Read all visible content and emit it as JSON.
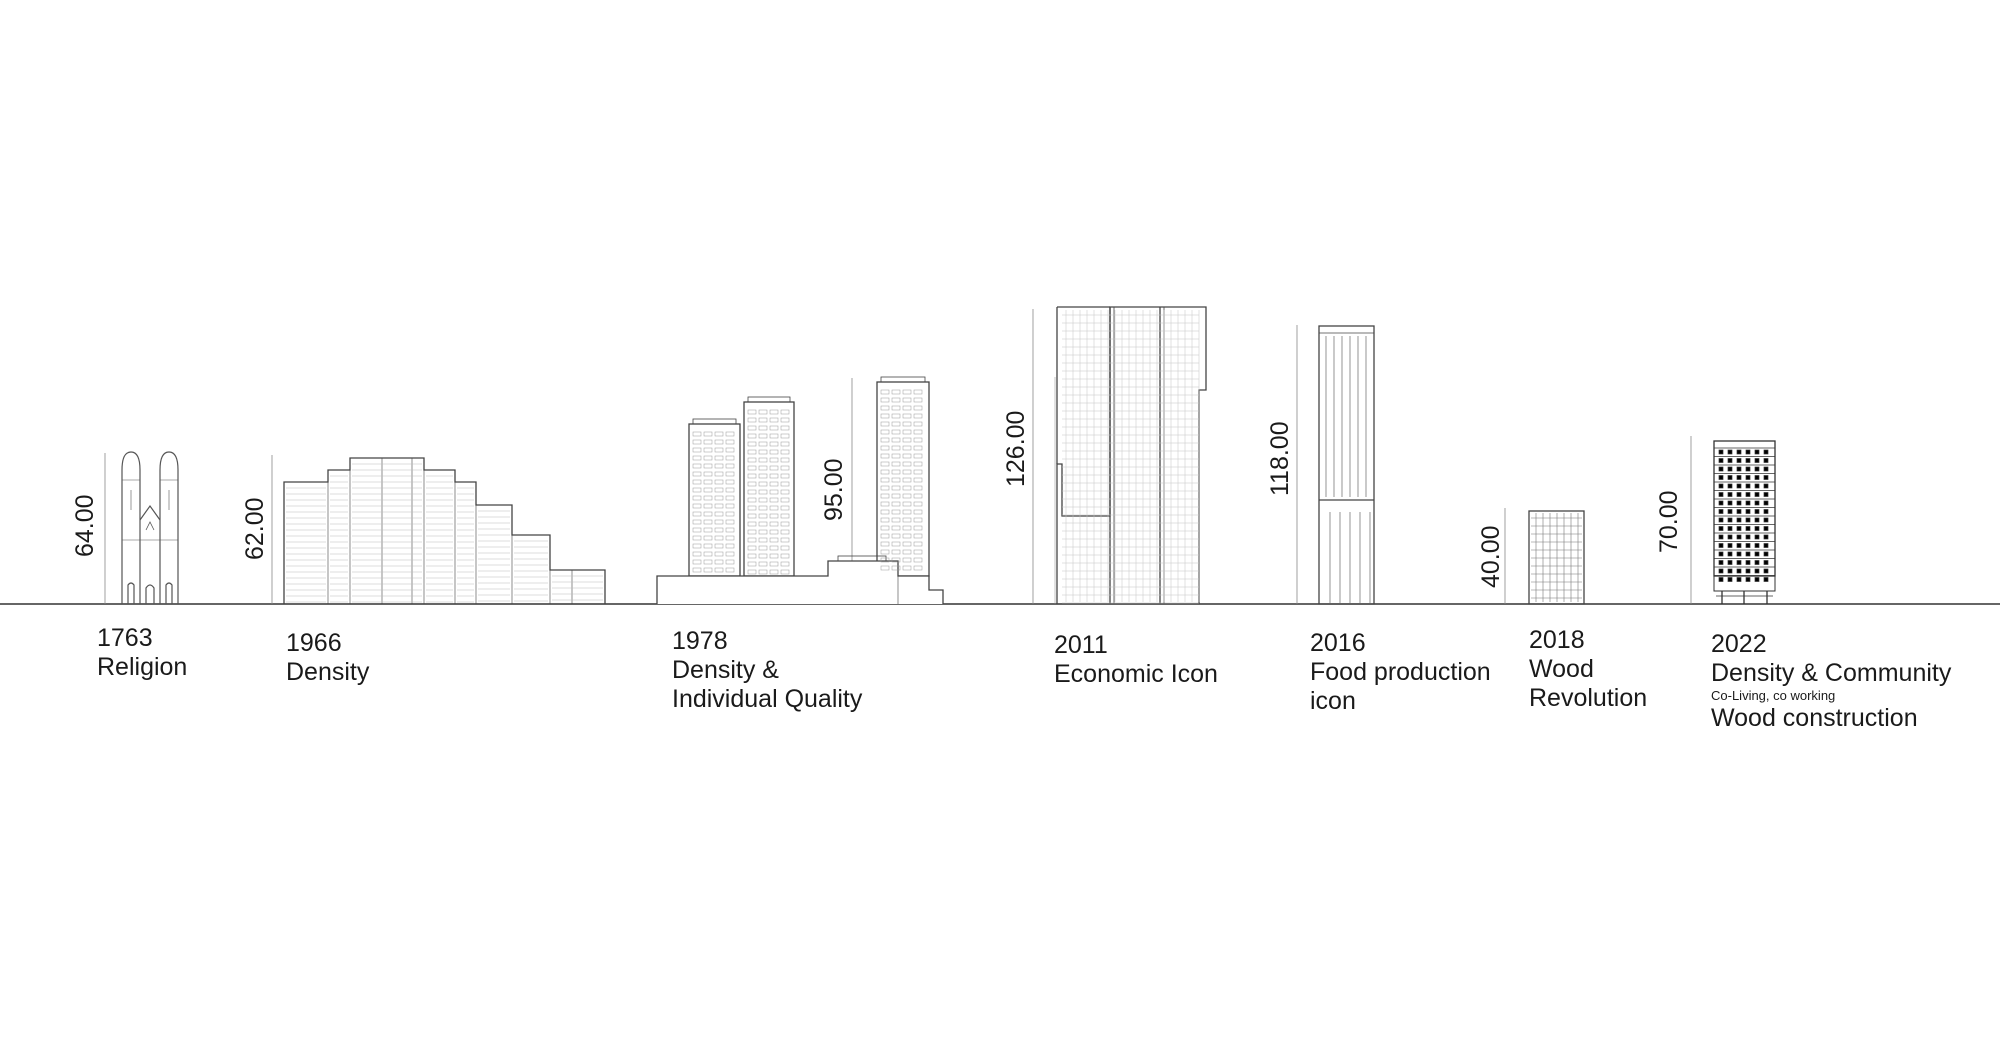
{
  "entries": [
    {
      "year": "1763",
      "line1": "Religion",
      "height": "64.00"
    },
    {
      "year": "1966",
      "line1": "Density",
      "height": "62.00"
    },
    {
      "year": "1978",
      "line1": "Density &",
      "line2": "Individual Quality",
      "height": "95.00"
    },
    {
      "year": "2011",
      "line1": "Economic Icon",
      "height": "126.00"
    },
    {
      "year": "2016",
      "line1": "Food production",
      "line2": "icon",
      "height": "118.00"
    },
    {
      "year": "2018",
      "line1": "Wood",
      "line2": "Revolution",
      "height": "40.00"
    },
    {
      "year": "2022",
      "line1": "Density & Community",
      "small": "Co-Living, co working",
      "line3": "Wood construction",
      "height": "70.00"
    }
  ]
}
